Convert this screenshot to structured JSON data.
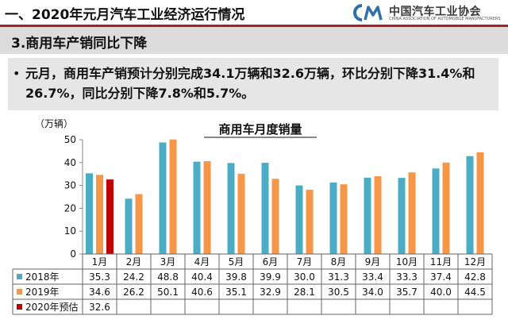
{
  "header": {
    "title": "一、2020年元月汽车工业经济运行情况",
    "logo_cn": "中国汽车工业协会",
    "logo_en": "CHINA ASSOCIATION OF AUTOMOBILE MANUFACTURERS",
    "accent_color": "#b01c22",
    "logo_color": "#2e6fae"
  },
  "section": {
    "title": "3.商用车产销同比下降"
  },
  "bullet": {
    "symbol": "•",
    "text": "元月，商用车产销预计分别完成34.1万辆和32.6万辆，环比分别下降31.4%和26.7%，同比分别下降7.8%和5.7%。"
  },
  "chart_data": {
    "type": "bar",
    "title": "商用车月度销量",
    "ylabel": "（万辆）",
    "ylim": [
      0,
      50
    ],
    "yticks": [
      0,
      10,
      20,
      30,
      40,
      50
    ],
    "grid": false,
    "categories": [
      "1月",
      "2月",
      "3月",
      "4月",
      "5月",
      "6月",
      "7月",
      "8月",
      "9月",
      "10月",
      "11月",
      "12月"
    ],
    "series": [
      {
        "name": "2018年",
        "color": "#4bacc6",
        "values": [
          35.3,
          24.2,
          48.8,
          40.4,
          39.8,
          39.9,
          30.0,
          31.3,
          33.4,
          33.3,
          37.4,
          42.8
        ]
      },
      {
        "name": "2019年",
        "color": "#f79646",
        "values": [
          34.6,
          26.2,
          50.1,
          40.6,
          35.1,
          32.9,
          28.1,
          30.5,
          34.0,
          35.7,
          40.0,
          44.5
        ]
      },
      {
        "name": "2020年预估",
        "color": "#c00000",
        "values": [
          32.6,
          null,
          null,
          null,
          null,
          null,
          null,
          null,
          null,
          null,
          null,
          null
        ]
      }
    ],
    "table_labels": [
      [
        "35.3",
        "24.2",
        "48.8",
        "40.4",
        "39.8",
        "39.9",
        "30.0",
        "31.3",
        "33.4",
        "33.3",
        "37.4",
        "42.8"
      ],
      [
        "34.6",
        "26.2",
        "50.1",
        "40.6",
        "35.1",
        "32.9",
        "28.1",
        "30.5",
        "34.0",
        "35.7",
        "40.0",
        "44.5"
      ],
      [
        "32.6",
        "",
        "",
        "",
        "",
        "",
        "",
        "",
        "",
        "",
        "",
        ""
      ]
    ]
  }
}
